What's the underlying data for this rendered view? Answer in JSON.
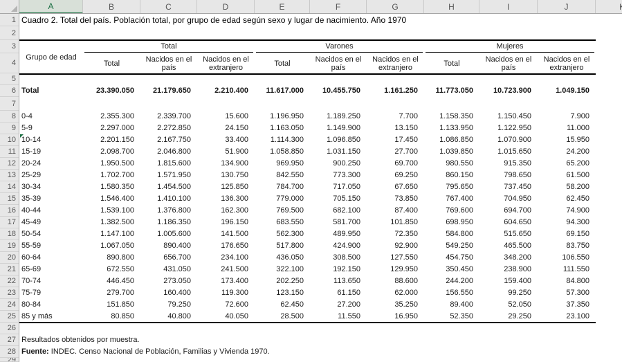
{
  "title": "Cuadro 2. Total del país. Población total, por grupo de edad según sexo y lugar de nacimiento. Año 1970",
  "spreadsheet": {
    "selected_column": "A",
    "column_letters": [
      "A",
      "B",
      "C",
      "D",
      "E",
      "F",
      "G",
      "H",
      "I",
      "J",
      "K"
    ],
    "row_numbers": [
      "1",
      "2",
      "3",
      "4",
      "5",
      "6",
      "7",
      "8",
      "9",
      "10",
      "11",
      "12",
      "13",
      "14",
      "15",
      "16",
      "17",
      "18",
      "19",
      "20",
      "21",
      "22",
      "23",
      "24",
      "25",
      "26",
      "27",
      "28",
      "29"
    ]
  },
  "table": {
    "corner_header": "Grupo de edad",
    "groups": [
      "Total",
      "Varones",
      "Mujeres"
    ],
    "subheaders": [
      "Total",
      "Nacidos en el país",
      "Nacidos en el extranjero"
    ],
    "total_row": {
      "label": "Total",
      "values": [
        "23.390.050",
        "21.179.650",
        "2.210.400",
        "11.617.000",
        "10.455.750",
        "1.161.250",
        "11.773.050",
        "10.723.900",
        "1.049.150"
      ]
    },
    "rows": [
      {
        "label": "0-4",
        "values": [
          "2.355.300",
          "2.339.700",
          "15.600",
          "1.196.950",
          "1.189.250",
          "7.700",
          "1.158.350",
          "1.150.450",
          "7.900"
        ]
      },
      {
        "label": "5-9",
        "values": [
          "2.297.000",
          "2.272.850",
          "24.150",
          "1.163.050",
          "1.149.900",
          "13.150",
          "1.133.950",
          "1.122.950",
          "11.000"
        ]
      },
      {
        "label": "10-14",
        "values": [
          "2.201.150",
          "2.167.750",
          "33.400",
          "1.114.300",
          "1.096.850",
          "17.450",
          "1.086.850",
          "1.070.900",
          "15.950"
        ]
      },
      {
        "label": "15-19",
        "values": [
          "2.098.700",
          "2.046.800",
          "51.900",
          "1.058.850",
          "1.031.150",
          "27.700",
          "1.039.850",
          "1.015.650",
          "24.200"
        ]
      },
      {
        "label": "20-24",
        "values": [
          "1.950.500",
          "1.815.600",
          "134.900",
          "969.950",
          "900.250",
          "69.700",
          "980.550",
          "915.350",
          "65.200"
        ]
      },
      {
        "label": "25-29",
        "values": [
          "1.702.700",
          "1.571.950",
          "130.750",
          "842.550",
          "773.300",
          "69.250",
          "860.150",
          "798.650",
          "61.500"
        ]
      },
      {
        "label": "30-34",
        "values": [
          "1.580.350",
          "1.454.500",
          "125.850",
          "784.700",
          "717.050",
          "67.650",
          "795.650",
          "737.450",
          "58.200"
        ]
      },
      {
        "label": "35-39",
        "values": [
          "1.546.400",
          "1.410.100",
          "136.300",
          "779.000",
          "705.150",
          "73.850",
          "767.400",
          "704.950",
          "62.450"
        ]
      },
      {
        "label": "40-44",
        "values": [
          "1.539.100",
          "1.376.800",
          "162.300",
          "769.500",
          "682.100",
          "87.400",
          "769.600",
          "694.700",
          "74.900"
        ]
      },
      {
        "label": "45-49",
        "values": [
          "1.382.500",
          "1.186.350",
          "196.150",
          "683.550",
          "581.700",
          "101.850",
          "698.950",
          "604.650",
          "94.300"
        ]
      },
      {
        "label": "50-54",
        "values": [
          "1.147.100",
          "1.005.600",
          "141.500",
          "562.300",
          "489.950",
          "72.350",
          "584.800",
          "515.650",
          "69.150"
        ]
      },
      {
        "label": "55-59",
        "values": [
          "1.067.050",
          "890.400",
          "176.650",
          "517.800",
          "424.900",
          "92.900",
          "549.250",
          "465.500",
          "83.750"
        ]
      },
      {
        "label": "60-64",
        "values": [
          "890.800",
          "656.700",
          "234.100",
          "436.050",
          "308.500",
          "127.550",
          "454.750",
          "348.200",
          "106.550"
        ]
      },
      {
        "label": "65-69",
        "values": [
          "672.550",
          "431.050",
          "241.500",
          "322.100",
          "192.150",
          "129.950",
          "350.450",
          "238.900",
          "111.550"
        ]
      },
      {
        "label": "70-74",
        "values": [
          "446.450",
          "273.050",
          "173.400",
          "202.250",
          "113.650",
          "88.600",
          "244.200",
          "159.400",
          "84.800"
        ]
      },
      {
        "label": "75-79",
        "values": [
          "279.700",
          "160.400",
          "119.300",
          "123.150",
          "61.150",
          "62.000",
          "156.550",
          "99.250",
          "57.300"
        ]
      },
      {
        "label": "80-84",
        "values": [
          "151.850",
          "79.250",
          "72.600",
          "62.450",
          "27.200",
          "35.250",
          "89.400",
          "52.050",
          "37.350"
        ]
      },
      {
        "label": "85 y más",
        "values": [
          "80.850",
          "40.800",
          "40.050",
          "28.500",
          "11.550",
          "16.950",
          "52.350",
          "29.250",
          "23.100"
        ]
      }
    ]
  },
  "notes": {
    "line1": "Resultados obtenidos por muestra.",
    "source_label": "Fuente:",
    "source_text": " INDEC. Censo Nacional de Población, Familias y Vivienda 1970."
  },
  "icons": {
    "cell_flag": "error-flag-triangle-icon",
    "select_all": "select-all-corner-icon"
  },
  "colors": {
    "accent_green": "#1E7145",
    "header_bg": "#E7E7E7",
    "header_selected_bg": "#D8E0D8",
    "table_border": "#000000"
  }
}
